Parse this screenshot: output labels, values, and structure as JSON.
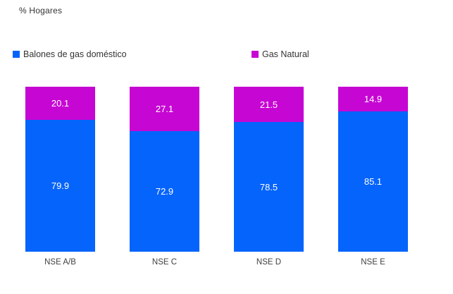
{
  "title": "% Hogares",
  "legend": {
    "items": [
      {
        "label": "Balones de gas doméstico",
        "color": "#0564FB"
      },
      {
        "label": "Gas Natural",
        "color": "#C606D3"
      }
    ],
    "position": "top"
  },
  "chart_data": {
    "type": "bar",
    "subtype": "stacked-100",
    "title": "% Hogares",
    "categories": [
      "NSE A/B",
      "NSE C",
      "NSE D",
      "NSE E"
    ],
    "series": [
      {
        "name": "Balones de gas doméstico",
        "color": "#0564FB",
        "values": [
          79.9,
          72.9,
          78.5,
          85.1
        ]
      },
      {
        "name": "Gas Natural",
        "color": "#C606D3",
        "values": [
          20.1,
          27.1,
          21.5,
          14.9
        ]
      }
    ],
    "xlabel": "",
    "ylabel": "% Hogares",
    "ylim": [
      0,
      100
    ],
    "grid": false,
    "legend_position": "top",
    "data_label_color": "#ffffff"
  },
  "colors": {
    "background": "#ffffff",
    "text": "#333333",
    "axis_text": "#404040"
  }
}
